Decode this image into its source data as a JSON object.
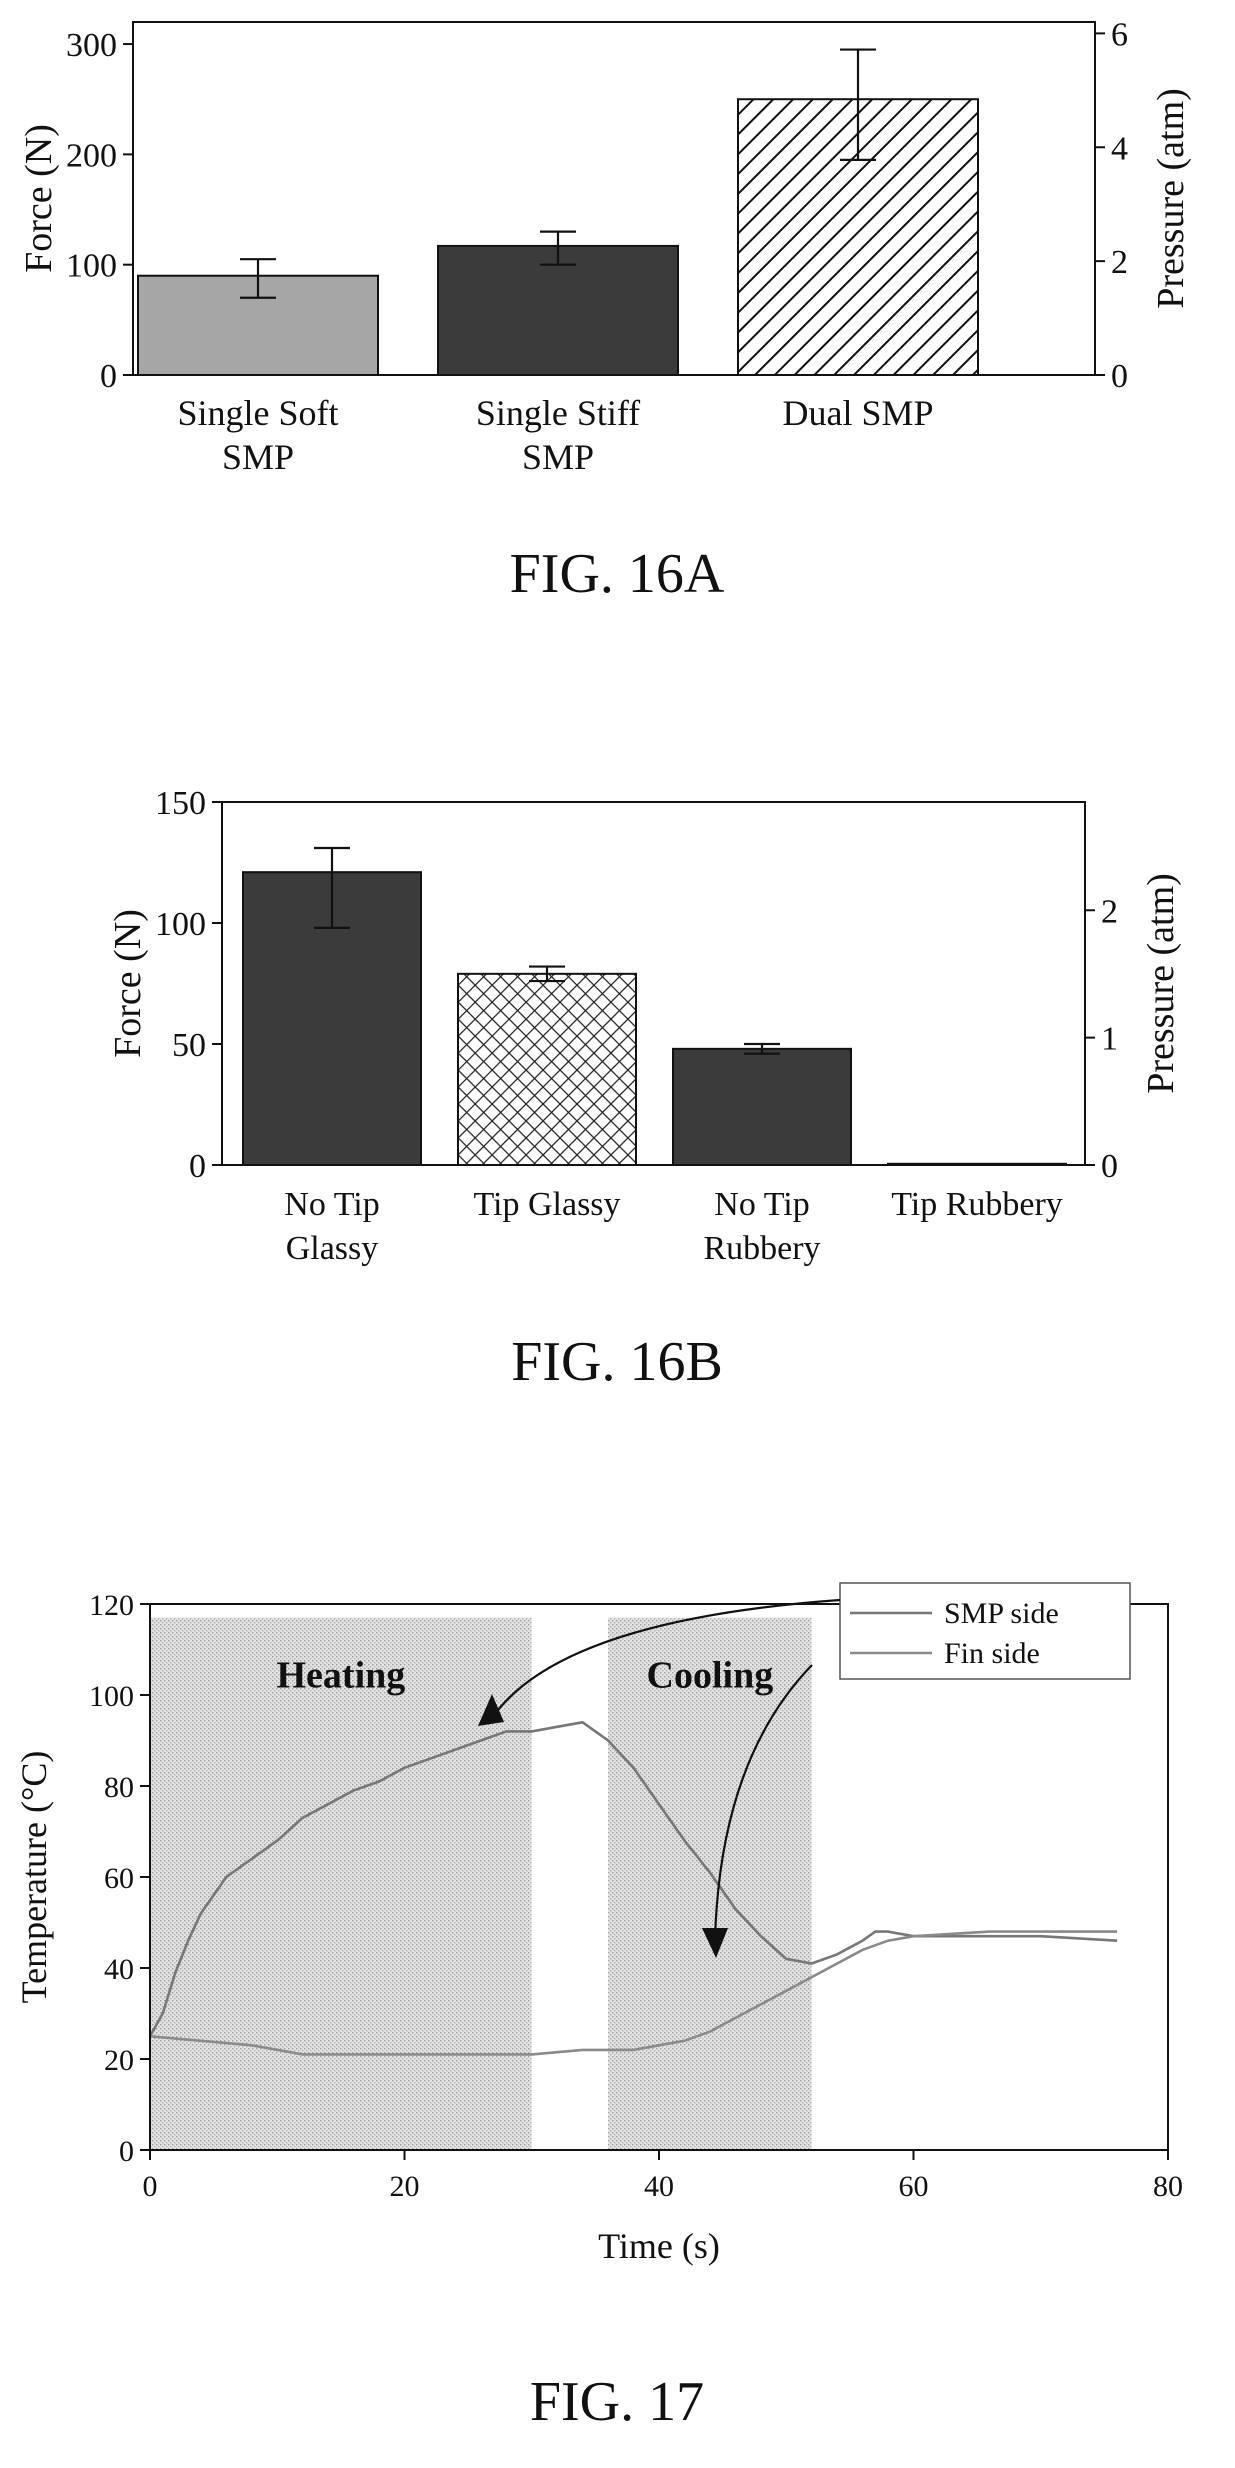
{
  "chart_data": [
    {
      "type": "bar",
      "figure_label": "FIG. 16A",
      "categories": [
        [
          "Single Soft",
          "SMP"
        ],
        [
          "Single Stiff",
          "SMP"
        ],
        [
          "Dual SMP"
        ]
      ],
      "values": [
        90,
        117,
        250
      ],
      "errors": [
        [
          70,
          105
        ],
        [
          100,
          130
        ],
        [
          195,
          295
        ]
      ],
      "ylabel": "Force (N)",
      "y2label": "Pressure (atm)",
      "ylim": [
        0,
        320
      ],
      "yticks": [
        0,
        100,
        200,
        300
      ],
      "y2lim": [
        0,
        6.2
      ],
      "y2ticks": [
        0,
        2,
        4,
        6
      ],
      "fills": [
        "gray",
        "dark",
        "diagonal-hatch"
      ]
    },
    {
      "type": "bar",
      "figure_label": "FIG. 16B",
      "categories": [
        [
          "No Tip",
          "Glassy"
        ],
        [
          "Tip Glassy"
        ],
        [
          "No Tip",
          "Rubbery"
        ],
        [
          "Tip Rubbery"
        ]
      ],
      "values": [
        121,
        79,
        48,
        0.5
      ],
      "errors": [
        [
          98,
          131
        ],
        [
          76,
          82
        ],
        [
          46,
          50
        ],
        [
          0.5,
          0.5
        ]
      ],
      "ylabel": "Force (N)",
      "y2label": "Pressure (atm)",
      "ylim": [
        0,
        150
      ],
      "yticks": [
        0,
        50,
        100,
        150
      ],
      "y2lim": [
        0,
        2.85
      ],
      "y2ticks": [
        0,
        1,
        2
      ],
      "fills": [
        "dark",
        "crosshatch",
        "dark",
        "dark"
      ]
    },
    {
      "type": "line",
      "figure_label": "FIG. 17",
      "xlabel": "Time (s)",
      "ylabel": "Temperature (°C)",
      "xlim": [
        0,
        80
      ],
      "ylim": [
        0,
        120
      ],
      "xticks": [
        0,
        20,
        40,
        60,
        80
      ],
      "yticks": [
        0,
        20,
        40,
        60,
        80,
        100,
        120
      ],
      "regions": [
        {
          "label": "Heating",
          "x": [
            0,
            30
          ]
        },
        {
          "label": "Cooling",
          "x": [
            36,
            52
          ]
        }
      ],
      "series": [
        {
          "name": "SMP side",
          "x": [
            0,
            1,
            2,
            3,
            4,
            5,
            6,
            8,
            10,
            12,
            14,
            16,
            18,
            20,
            22,
            24,
            26,
            28,
            30,
            32,
            34,
            36,
            38,
            40,
            42,
            44,
            46,
            48,
            50,
            52,
            54,
            56,
            57,
            58,
            60,
            62,
            66,
            70,
            76
          ],
          "y": [
            25,
            30,
            39,
            46,
            52,
            56,
            60,
            64,
            68,
            73,
            76,
            79,
            81,
            84,
            86,
            88,
            90,
            92,
            92,
            93,
            94,
            90,
            84,
            76,
            68,
            61,
            53,
            47,
            42,
            41,
            43,
            46,
            48,
            48,
            47,
            47,
            47,
            47,
            46
          ]
        },
        {
          "name": "Fin side",
          "x": [
            0,
            4,
            8,
            12,
            20,
            28,
            30,
            34,
            38,
            40,
            42,
            44,
            46,
            48,
            50,
            52,
            54,
            56,
            58,
            60,
            66,
            70,
            76
          ],
          "y": [
            25,
            24,
            23,
            21,
            21,
            21,
            21,
            22,
            22,
            23,
            24,
            26,
            29,
            32,
            35,
            38,
            41,
            44,
            46,
            47,
            48,
            48,
            48
          ]
        }
      ],
      "legend": "top-right"
    }
  ]
}
